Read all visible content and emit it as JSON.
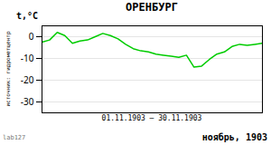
{
  "chart_data": {
    "type": "line",
    "title": "ОРЕНБУРГ",
    "ylabel": "t,°C",
    "xlabel": "01.11.1903 – 30.11.1903",
    "annotations": [
      "ноябрь, 1903",
      "lab127",
      "источник: гидрометцентр"
    ],
    "x": [
      1,
      2,
      3,
      4,
      5,
      6,
      7,
      8,
      9,
      10,
      11,
      12,
      13,
      14,
      15,
      16,
      17,
      18,
      19,
      20,
      21,
      22,
      23,
      24,
      25,
      26,
      27,
      28,
      29,
      30
    ],
    "values": [
      -2.5,
      -1.5,
      2.0,
      0.5,
      -3.0,
      -2.0,
      -1.5,
      0.0,
      1.5,
      0.5,
      -1.0,
      -3.5,
      -5.5,
      -6.5,
      -7.0,
      -8.0,
      -8.5,
      -9.0,
      -9.5,
      -8.5,
      -14.0,
      -13.5,
      -10.5,
      -8.0,
      -7.0,
      -4.5,
      -3.5,
      -4.0,
      -3.5,
      -3.0
    ],
    "color": "#00cc00",
    "xlim": [
      1,
      30
    ],
    "xticks": [],
    "ylim": [
      -35,
      5
    ],
    "yticks": [
      0,
      -10,
      -20,
      -30
    ],
    "grid": true,
    "tick_labels": "y"
  }
}
